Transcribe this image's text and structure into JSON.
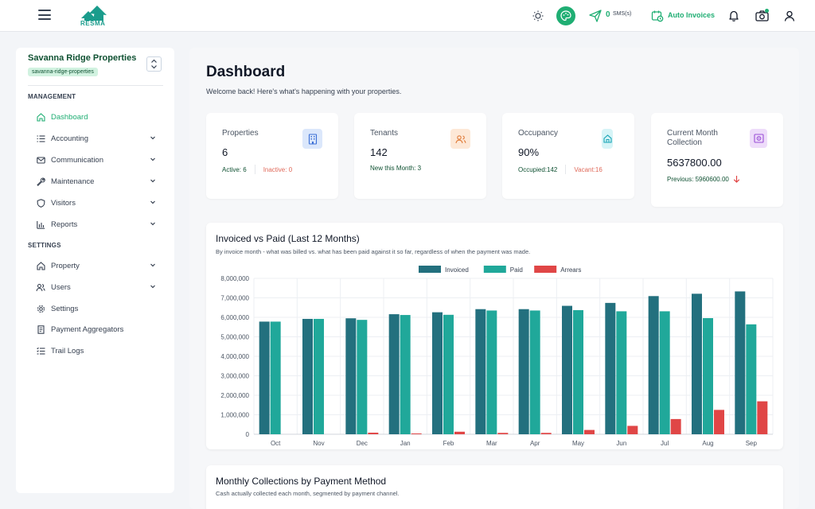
{
  "topbar": {
    "logo_text": "RESMA",
    "sms_count": "0",
    "sms_label": "SMS(s)",
    "auto_invoices_label": "Auto Invoices",
    "icons": [
      "menu-icon",
      "sun-icon",
      "palette-icon",
      "send-icon",
      "calendar-icon",
      "bell-icon",
      "camera-icon",
      "user-icon"
    ]
  },
  "sidebar": {
    "property_name": "Savanna Ridge Properties",
    "property_slug": "savanna-ridge-properties",
    "management_label": "MANAGEMENT",
    "settings_label": "SETTINGS",
    "items": [
      {
        "label": "Dashboard",
        "icon": "home-icon"
      },
      {
        "label": "Accounting",
        "icon": "list-icon"
      },
      {
        "label": "Communication",
        "icon": "mail-icon"
      },
      {
        "label": "Maintenance",
        "icon": "wrench-icon"
      },
      {
        "label": "Visitors",
        "icon": "shield-icon"
      },
      {
        "label": "Reports",
        "icon": "bar-chart-icon"
      }
    ],
    "settings_items": [
      {
        "label": "Property",
        "icon": "home-icon"
      },
      {
        "label": "Users",
        "icon": "users-icon"
      },
      {
        "label": "Settings",
        "icon": "gear-icon"
      },
      {
        "label": "Payment Aggregators",
        "icon": "receipt-icon"
      },
      {
        "label": "Trail Logs",
        "icon": "log-icon"
      }
    ]
  },
  "main": {
    "title": "Dashboard",
    "subtitle": "Welcome back! Here's what's happening with your properties.",
    "stats": [
      {
        "label": "Properties",
        "value": "6",
        "foot_a": "Active: 6",
        "foot_b": "Inactive: 0",
        "icon": "building-icon"
      },
      {
        "label": "Tenants",
        "value": "142",
        "foot_a": "New this Month: 3",
        "icon": "users-icon"
      },
      {
        "label": "Occupancy",
        "value": "90%",
        "foot_a": "Occupied:142",
        "foot_b": "Vacant:16",
        "icon": "home-icon"
      },
      {
        "label": "Current Month Collection",
        "value": "5637800.00",
        "foot_a": "Previous: 5960600.00",
        "icon": "safe-icon"
      }
    ],
    "chart_card": {
      "title": "Invoiced vs Paid (Last 12 Months)",
      "subtitle": "By invoice month - what was billed vs. what has been paid against it so far, regardless of when the payment was made."
    },
    "card2": {
      "title": "Monthly Collections by Payment Method",
      "subtitle": "Cash actually collected each month, segmented by payment channel."
    }
  },
  "colors": {
    "brand_green": "#1fae73",
    "invoiced": "#23707e",
    "paid": "#20a89a",
    "arrears": "#e04646"
  },
  "chart_data": {
    "type": "bar",
    "title": "Invoiced vs Paid (Last 12 Months)",
    "categories": [
      "Oct",
      "Nov",
      "Dec",
      "Jan",
      "Feb",
      "Mar",
      "Apr",
      "May",
      "Jun",
      "Jul",
      "Aug",
      "Sep"
    ],
    "series": [
      {
        "name": "Invoiced",
        "values": [
          5780000,
          5920000,
          5950000,
          6160000,
          6260000,
          6420000,
          6420000,
          6590000,
          6740000,
          7090000,
          7210000,
          7330000
        ]
      },
      {
        "name": "Paid",
        "values": [
          5780000,
          5920000,
          5870000,
          6120000,
          6130000,
          6350000,
          6350000,
          6370000,
          6310000,
          6310000,
          5960000,
          5640000
        ]
      },
      {
        "name": "Arrears",
        "values": [
          0,
          0,
          80000,
          40000,
          130000,
          70000,
          70000,
          220000,
          430000,
          780000,
          1250000,
          1690000
        ]
      }
    ],
    "yticks": [
      "0",
      "1,000,000",
      "2,000,000",
      "3,000,000",
      "4,000,000",
      "5,000,000",
      "6,000,000",
      "7,000,000",
      "8,000,000"
    ],
    "ylim": [
      0,
      8000000
    ],
    "legend": "top-center",
    "grid": true
  }
}
